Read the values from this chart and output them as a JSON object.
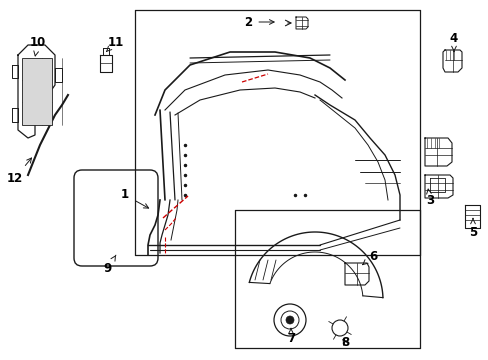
{
  "bg_color": "#ffffff",
  "line_color": "#1a1a1a",
  "red_color": "#cc0000",
  "label_color": "#000000",
  "figsize": [
    4.89,
    3.6
  ],
  "dpi": 100
}
